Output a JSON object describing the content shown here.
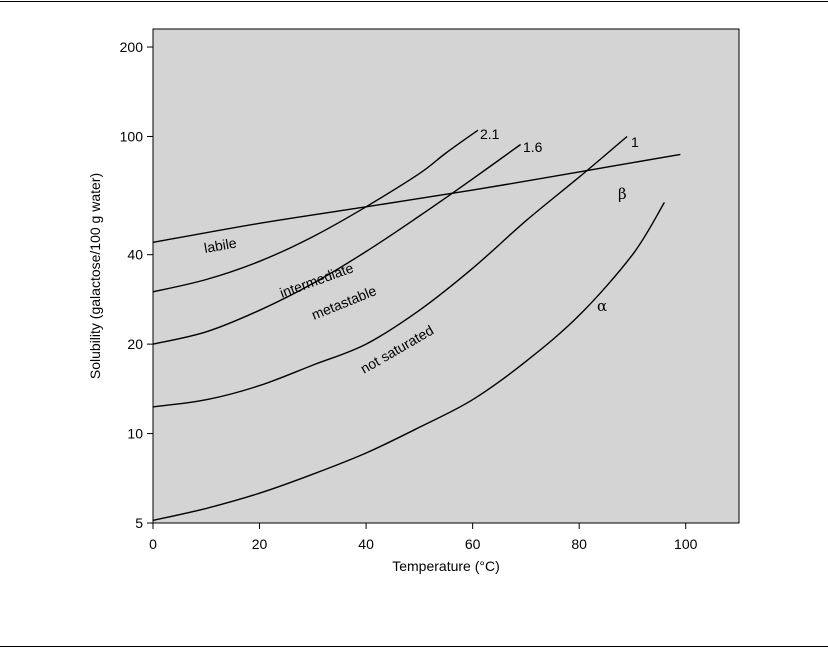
{
  "chart_data": {
    "type": "line",
    "xlabel": "Temperature (°C)",
    "ylabel": "Solubility (galactose/100 g water)",
    "xlim": [
      0,
      110
    ],
    "ylim": [
      5,
      230
    ],
    "yscale": "log",
    "x_ticks": [
      "0",
      "20",
      "40",
      "60",
      "80",
      "100"
    ],
    "y_ticks": [
      "5",
      "10",
      "20",
      "40",
      "100",
      "200"
    ],
    "background": "#d4d4d4",
    "grid": false,
    "series": [
      {
        "name": "2.1",
        "x": [
          0,
          10,
          20,
          30,
          40,
          50,
          55,
          61
        ],
        "y": [
          30,
          33,
          38,
          46,
          58,
          75,
          88,
          105
        ]
      },
      {
        "name": "1.6",
        "x": [
          0,
          10,
          20,
          30,
          40,
          50,
          60,
          69
        ],
        "y": [
          20,
          22,
          26,
          32,
          41,
          54,
          72,
          94
        ]
      },
      {
        "name": "1",
        "x": [
          0,
          10,
          20,
          30,
          40,
          50,
          60,
          70,
          80,
          89
        ],
        "y": [
          12.3,
          13,
          14.5,
          17,
          20,
          26,
          36,
          52,
          73,
          100
        ]
      },
      {
        "name": "β",
        "x": [
          0,
          20,
          40,
          60,
          80,
          99
        ],
        "y": [
          44,
          51,
          58,
          66,
          76,
          87
        ]
      },
      {
        "name": "α",
        "x": [
          0,
          10,
          20,
          30,
          40,
          50,
          60,
          70,
          80,
          90,
          96
        ],
        "y": [
          5.1,
          5.6,
          6.3,
          7.3,
          8.6,
          10.5,
          13,
          17.5,
          25,
          40,
          60
        ]
      }
    ],
    "region_labels": [
      "labile",
      "intermediate",
      "metastable",
      "not saturated"
    ]
  }
}
